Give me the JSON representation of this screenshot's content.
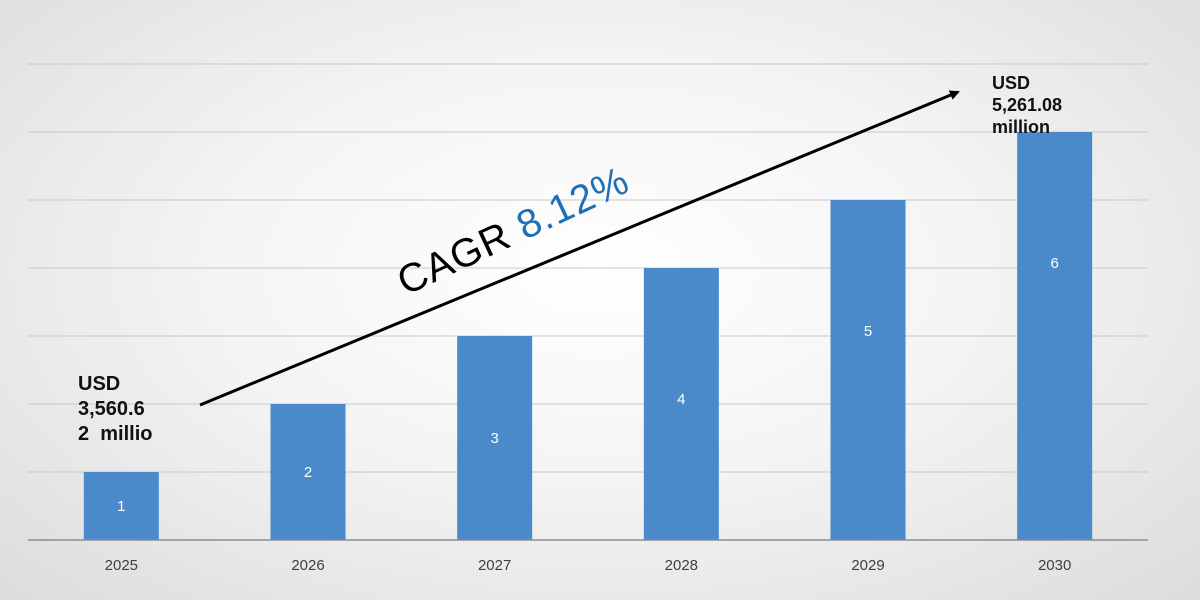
{
  "chart_data": {
    "type": "bar",
    "categories": [
      "2025",
      "2026",
      "2027",
      "2028",
      "2029",
      "2030"
    ],
    "values": [
      1,
      2,
      3,
      4,
      5,
      6
    ],
    "data_labels": [
      "1",
      "2",
      "3",
      "4",
      "5",
      "6"
    ],
    "ylim": [
      0,
      7
    ],
    "grid": true,
    "bar_color": "#4a8acb",
    "annotations": {
      "start": [
        "USD",
        "3,560.6",
        "2  millio"
      ],
      "end": [
        "USD",
        "5,261.08",
        "million"
      ],
      "cagr_label": "CAGR",
      "cagr_value": "8.12%"
    }
  },
  "colors": {
    "cagr_value": "#1f6fb8",
    "arrow": "#000000",
    "grid": "#c8c8c8"
  }
}
